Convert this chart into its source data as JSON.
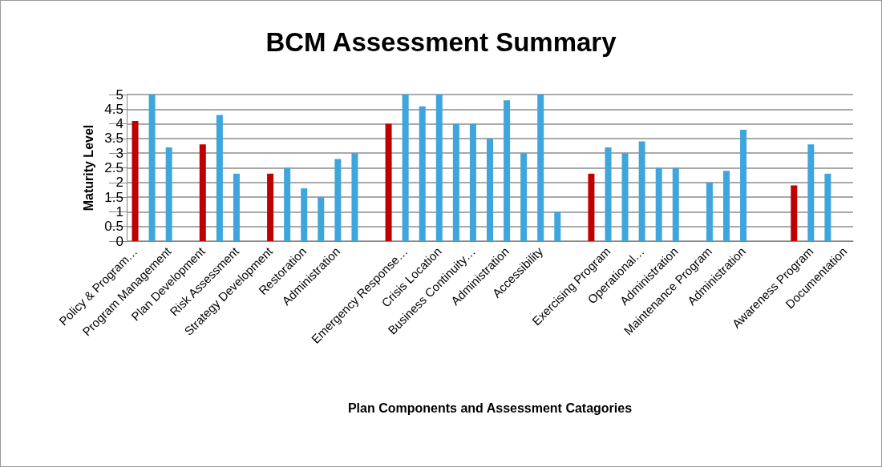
{
  "chart_data": {
    "type": "bar",
    "title": "BCM Assessment Summary",
    "xlabel": "Plan Components and Assessment Catagories",
    "ylabel": "Maturity Level",
    "categories": [
      "Policy & Program…",
      null,
      "Program Management",
      null,
      "Plan Development",
      null,
      "Risk Assessment",
      null,
      "Strategy Development",
      null,
      "Restoration",
      null,
      "Administration",
      null,
      null,
      null,
      "Emergency Response…",
      null,
      "Crisis Location",
      null,
      "Business Continuity…",
      null,
      "Administration",
      null,
      "Accessibility",
      null,
      null,
      null,
      "Exercising Program",
      null,
      "Operational…",
      null,
      "Administration",
      null,
      "Maintenance Program",
      null,
      "Administration",
      null,
      null,
      null,
      "Awareness Program",
      null,
      "Documentation"
    ],
    "values": [
      4.1,
      5.0,
      3.2,
      null,
      3.3,
      4.3,
      2.3,
      null,
      2.3,
      2.5,
      1.8,
      1.5,
      2.8,
      3.0,
      null,
      4.0,
      5.0,
      4.6,
      5.0,
      4.0,
      4.0,
      3.5,
      4.8,
      3.0,
      5.0,
      1.0,
      null,
      2.3,
      3.2,
      3.0,
      3.4,
      2.5,
      2.5,
      null,
      2.0,
      2.4,
      3.8,
      null,
      null,
      1.9,
      3.3,
      2.3,
      null
    ],
    "colors": [
      "#c00000",
      "#3ea6dc",
      "#3ea6dc",
      "#3ea6dc",
      "#c00000",
      "#3ea6dc",
      "#3ea6dc",
      "#3ea6dc",
      "#c00000",
      "#3ea6dc",
      "#3ea6dc",
      "#3ea6dc",
      "#3ea6dc",
      "#3ea6dc",
      "#3ea6dc",
      "#c00000",
      "#3ea6dc",
      "#3ea6dc",
      "#3ea6dc",
      "#3ea6dc",
      "#3ea6dc",
      "#3ea6dc",
      "#3ea6dc",
      "#3ea6dc",
      "#3ea6dc",
      "#3ea6dc",
      "#3ea6dc",
      "#c00000",
      "#3ea6dc",
      "#3ea6dc",
      "#3ea6dc",
      "#3ea6dc",
      "#3ea6dc",
      "#3ea6dc",
      "#3ea6dc",
      "#3ea6dc",
      "#3ea6dc",
      "#3ea6dc",
      "#3ea6dc",
      "#c00000",
      "#3ea6dc",
      "#3ea6dc",
      "#3ea6dc"
    ],
    "ylim": [
      0,
      5
    ],
    "yticks": [
      0,
      0.5,
      1,
      1.5,
      2,
      2.5,
      3,
      3.5,
      4,
      4.5,
      5
    ],
    "grid": "y"
  }
}
